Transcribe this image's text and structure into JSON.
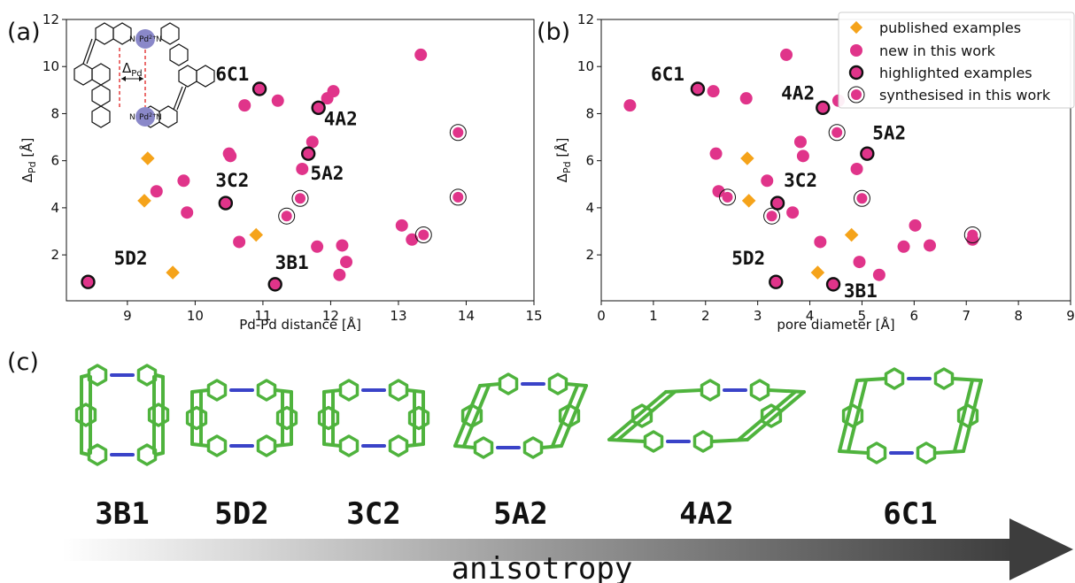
{
  "panels": {
    "a": "(a)",
    "b": "(b)",
    "c": "(c)"
  },
  "colors": {
    "published": "#f5a31a",
    "new": "#e0348a",
    "highlight_edge": "#111111",
    "cage_green": "#4fb33d",
    "cage_blue": "#3a43c8"
  },
  "legend": {
    "published": "published examples",
    "new": "new in this work",
    "highlighted": "highlighted examples",
    "synthesised": "synthesised in this work"
  },
  "inset": {
    "label": "Δ",
    "subscript": "Pd",
    "pd_label": "Pd",
    "charge": "2+",
    "n_label": "N"
  },
  "chart_data": [
    {
      "id": "a",
      "type": "scatter",
      "xlabel": "Pd-Pd distance [Å]",
      "ylabel": "Δ",
      "ylabel_sub": "Pd",
      "ylabel_unit": " [Å]",
      "xlim": [
        8.1,
        15
      ],
      "ylim": [
        0.05,
        12
      ],
      "xticks": [
        9,
        10,
        11,
        12,
        13,
        14,
        15
      ],
      "yticks": [
        2,
        4,
        6,
        8,
        10,
        12
      ],
      "published": [
        {
          "x": 9.3,
          "y": 6.1
        },
        {
          "x": 9.25,
          "y": 4.3
        },
        {
          "x": 9.67,
          "y": 1.25
        },
        {
          "x": 10.9,
          "y": 2.85
        }
      ],
      "new": [
        {
          "x": 9.43,
          "y": 4.7
        },
        {
          "x": 9.83,
          "y": 5.15
        },
        {
          "x": 9.88,
          "y": 3.8
        },
        {
          "x": 10.5,
          "y": 6.3
        },
        {
          "x": 10.52,
          "y": 6.2
        },
        {
          "x": 10.65,
          "y": 2.55
        },
        {
          "x": 10.73,
          "y": 8.35
        },
        {
          "x": 11.22,
          "y": 8.55
        },
        {
          "x": 11.58,
          "y": 5.65
        },
        {
          "x": 11.73,
          "y": 6.8
        },
        {
          "x": 11.8,
          "y": 2.35
        },
        {
          "x": 11.95,
          "y": 8.65
        },
        {
          "x": 12.04,
          "y": 8.95
        },
        {
          "x": 12.13,
          "y": 1.15
        },
        {
          "x": 12.17,
          "y": 2.4
        },
        {
          "x": 12.23,
          "y": 1.7
        },
        {
          "x": 13.05,
          "y": 3.25
        },
        {
          "x": 13.2,
          "y": 2.65
        },
        {
          "x": 13.33,
          "y": 10.5
        }
      ],
      "highlighted": [
        {
          "label": "6C1",
          "x": 10.95,
          "y": 9.05,
          "lx": 10.3,
          "ly": 9.4
        },
        {
          "label": "4A2",
          "x": 11.82,
          "y": 8.25,
          "lx": 11.9,
          "ly": 7.5
        },
        {
          "label": "5A2",
          "x": 11.67,
          "y": 6.3,
          "lx": 11.7,
          "ly": 5.2
        },
        {
          "label": "3C2",
          "x": 10.45,
          "y": 4.2,
          "lx": 10.3,
          "ly": 4.9
        },
        {
          "label": "3B1",
          "x": 11.18,
          "y": 0.75,
          "lx": 11.18,
          "ly": 1.4
        },
        {
          "label": "5D2",
          "x": 8.42,
          "y": 0.85,
          "lx": 8.8,
          "ly": 1.6
        }
      ],
      "synthesised": [
        {
          "x": 11.55,
          "y": 4.4
        },
        {
          "x": 11.35,
          "y": 3.65
        },
        {
          "x": 13.37,
          "y": 2.85
        },
        {
          "x": 13.88,
          "y": 7.2
        },
        {
          "x": 13.88,
          "y": 4.45
        }
      ]
    },
    {
      "id": "b",
      "type": "scatter",
      "xlabel": "pore diameter [Å]",
      "ylabel": "Δ",
      "ylabel_sub": "Pd",
      "ylabel_unit": " [Å]",
      "xlim": [
        0,
        9
      ],
      "ylim": [
        0.05,
        12
      ],
      "xticks": [
        0,
        1,
        2,
        3,
        4,
        5,
        6,
        7,
        8,
        9
      ],
      "yticks": [
        2,
        4,
        6,
        8,
        10,
        12
      ],
      "published": [
        {
          "x": 2.8,
          "y": 6.1
        },
        {
          "x": 2.83,
          "y": 4.3
        },
        {
          "x": 4.15,
          "y": 1.25
        },
        {
          "x": 4.8,
          "y": 2.85
        }
      ],
      "new": [
        {
          "x": 0.55,
          "y": 8.35
        },
        {
          "x": 2.15,
          "y": 8.95
        },
        {
          "x": 2.2,
          "y": 6.3
        },
        {
          "x": 2.25,
          "y": 4.7
        },
        {
          "x": 2.78,
          "y": 8.65
        },
        {
          "x": 3.18,
          "y": 5.15
        },
        {
          "x": 3.55,
          "y": 10.5
        },
        {
          "x": 3.67,
          "y": 3.8
        },
        {
          "x": 3.82,
          "y": 6.8
        },
        {
          "x": 3.87,
          "y": 6.2
        },
        {
          "x": 4.2,
          "y": 2.55
        },
        {
          "x": 4.55,
          "y": 8.55
        },
        {
          "x": 4.9,
          "y": 5.65
        },
        {
          "x": 4.95,
          "y": 1.7
        },
        {
          "x": 5.33,
          "y": 1.15
        },
        {
          "x": 5.8,
          "y": 2.35
        },
        {
          "x": 6.02,
          "y": 3.25
        },
        {
          "x": 6.3,
          "y": 2.4
        },
        {
          "x": 7.12,
          "y": 2.65
        }
      ],
      "highlighted": [
        {
          "label": "6C1",
          "x": 1.85,
          "y": 9.05,
          "lx": 0.95,
          "ly": 9.4
        },
        {
          "label": "4A2",
          "x": 4.25,
          "y": 8.25,
          "lx": 3.45,
          "ly": 8.6
        },
        {
          "label": "5A2",
          "x": 5.1,
          "y": 6.3,
          "lx": 5.2,
          "ly": 6.9
        },
        {
          "label": "3C2",
          "x": 3.38,
          "y": 4.2,
          "lx": 3.5,
          "ly": 4.9
        },
        {
          "label": "3B1",
          "x": 4.45,
          "y": 0.75,
          "lx": 4.65,
          "ly": 0.2
        },
        {
          "label": "5D2",
          "x": 3.35,
          "y": 0.85,
          "lx": 2.5,
          "ly": 1.6
        }
      ],
      "synthesised": [
        {
          "x": 4.52,
          "y": 7.2
        },
        {
          "x": 2.42,
          "y": 4.45
        },
        {
          "x": 3.27,
          "y": 3.65
        },
        {
          "x": 5.0,
          "y": 4.4
        },
        {
          "x": 7.12,
          "y": 2.85
        }
      ]
    }
  ],
  "cages": [
    {
      "label": "3B1",
      "shape": "tall"
    },
    {
      "label": "5D2",
      "shape": "box"
    },
    {
      "label": "3C2",
      "shape": "box"
    },
    {
      "label": "5A2",
      "shape": "skew"
    },
    {
      "label": "4A2",
      "shape": "flat"
    },
    {
      "label": "6C1",
      "shape": "twist"
    }
  ],
  "anisotropy": "anisotropy"
}
